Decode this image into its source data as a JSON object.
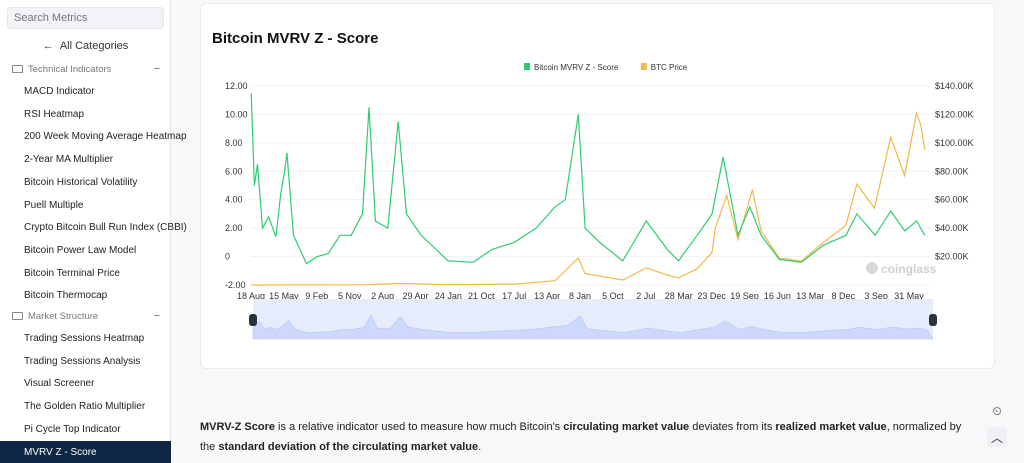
{
  "sidebar": {
    "search_placeholder": "Search Metrics",
    "all_categories": "All Categories",
    "groups": [
      {
        "label": "Technical Indicators",
        "items": [
          "MACD Indicator",
          "RSI Heatmap",
          "200 Week Moving Average Heatmap",
          "2-Year MA Multiplier",
          "Bitcoin Historical Volatility",
          "Puell Multiple",
          "Crypto Bitcoin Bull Run Index (CBBI)",
          "Bitcoin Power Law Model",
          "Bitcoin Terminal Price",
          "Bitcoin Thermocap"
        ]
      },
      {
        "label": "Market Structure",
        "items": [
          "Trading Sessions Heatmap",
          "Trading Sessions Analysis",
          "Visual Screener",
          "The Golden Ratio Multiplier",
          "Pi Cycle Top Indicator",
          "MVRV Z - Score"
        ]
      }
    ],
    "active_item": "MVRV Z - Score"
  },
  "card": {
    "title": "Bitcoin MVRV Z - Score",
    "watermark": "coinglass"
  },
  "chart_data": {
    "type": "line",
    "title": "Bitcoin MVRV Z - Score",
    "legend_position": "top",
    "x_ticks": [
      "18 Aug",
      "15 May",
      "9 Feb",
      "5 Nov",
      "2 Aug",
      "29 Apr",
      "24 Jan",
      "21 Oct",
      "17 Jul",
      "13 Apr",
      "8 Jan",
      "5 Oct",
      "2 Jul",
      "28 Mar",
      "23 Dec",
      "19 Sep",
      "16 Jun",
      "13 Mar",
      "8 Dec",
      "3 Sep",
      "31 May"
    ],
    "x_range": [
      "2010-08-18",
      "2025-11-10"
    ],
    "y_left": {
      "ticks": [
        "12.00",
        "10.00",
        "8.00",
        "6.00",
        "4.00",
        "2.00",
        "0",
        "-2.00"
      ],
      "range": [
        -2,
        12
      ]
    },
    "y_right": {
      "ticks": [
        "$140.00K",
        "$120.00K",
        "$100.00K",
        "$80.00K",
        "$60.00K",
        "$40.00K",
        "$20.00K"
      ],
      "range": [
        0,
        140000
      ]
    },
    "series": [
      {
        "name": "Bitcoin MVRV Z - Score",
        "color": "#2ecc71",
        "axis": "left",
        "points": [
          [
            "2010-08-20",
            11.5
          ],
          [
            "2010-09-15",
            5
          ],
          [
            "2010-10-10",
            6.5
          ],
          [
            "2010-11-20",
            2
          ],
          [
            "2011-01-10",
            2.8
          ],
          [
            "2011-03-10",
            1.4
          ],
          [
            "2011-04-20",
            4.5
          ],
          [
            "2011-05-20",
            6
          ],
          [
            "2011-06-08",
            7.3
          ],
          [
            "2011-08-01",
            1.5
          ],
          [
            "2011-11-15",
            -0.5
          ],
          [
            "2012-02-10",
            0
          ],
          [
            "2012-05-10",
            0.2
          ],
          [
            "2012-08-15",
            1.5
          ],
          [
            "2012-11-15",
            1.5
          ],
          [
            "2013-02-15",
            3
          ],
          [
            "2013-04-09",
            10.5
          ],
          [
            "2013-06-01",
            2.5
          ],
          [
            "2013-09-10",
            2
          ],
          [
            "2013-12-04",
            9.5
          ],
          [
            "2014-02-10",
            3
          ],
          [
            "2014-06-10",
            1.5
          ],
          [
            "2014-10-10",
            0.5
          ],
          [
            "2015-01-15",
            -0.3
          ],
          [
            "2015-08-10",
            -0.4
          ],
          [
            "2016-01-10",
            0.5
          ],
          [
            "2016-07-10",
            1
          ],
          [
            "2017-01-05",
            2
          ],
          [
            "2017-06-10",
            3.5
          ],
          [
            "2017-09-01",
            4
          ],
          [
            "2017-12-17",
            10
          ],
          [
            "2018-02-10",
            2
          ],
          [
            "2018-06-10",
            1
          ],
          [
            "2018-12-15",
            -0.3
          ],
          [
            "2019-06-26",
            2.5
          ],
          [
            "2019-12-15",
            0.5
          ],
          [
            "2020-03-15",
            -0.3
          ],
          [
            "2020-08-15",
            1.5
          ],
          [
            "2020-12-15",
            3
          ],
          [
            "2021-03-15",
            7
          ],
          [
            "2021-07-15",
            1.5
          ],
          [
            "2021-10-20",
            3.5
          ],
          [
            "2022-01-20",
            1.5
          ],
          [
            "2022-06-18",
            -0.2
          ],
          [
            "2022-12-15",
            -0.4
          ],
          [
            "2023-06-15",
            0.8
          ],
          [
            "2023-12-15",
            1.5
          ],
          [
            "2024-03-14",
            3
          ],
          [
            "2024-08-10",
            1.5
          ],
          [
            "2024-12-15",
            3.2
          ],
          [
            "2025-04-10",
            1.8
          ],
          [
            "2025-07-15",
            2.5
          ],
          [
            "2025-09-20",
            1.5
          ]
        ]
      },
      {
        "name": "BTC Price",
        "color": "#f0b94a",
        "axis": "right",
        "points": [
          [
            "2010-08-20",
            0
          ],
          [
            "2013-04-09",
            200
          ],
          [
            "2013-12-04",
            1100
          ],
          [
            "2015-01-15",
            200
          ],
          [
            "2016-07-10",
            650
          ],
          [
            "2017-06-10",
            3000
          ],
          [
            "2017-12-17",
            19000
          ],
          [
            "2018-02-10",
            8000
          ],
          [
            "2018-12-15",
            3500
          ],
          [
            "2019-06-26",
            12000
          ],
          [
            "2019-12-15",
            7000
          ],
          [
            "2020-03-15",
            5000
          ],
          [
            "2020-08-15",
            11500
          ],
          [
            "2020-12-15",
            23000
          ],
          [
            "2021-01-10",
            40000
          ],
          [
            "2021-04-14",
            63000
          ],
          [
            "2021-07-15",
            32000
          ],
          [
            "2021-11-10",
            67000
          ],
          [
            "2022-01-20",
            38000
          ],
          [
            "2022-06-18",
            19000
          ],
          [
            "2022-12-15",
            16800
          ],
          [
            "2023-06-15",
            30000
          ],
          [
            "2023-12-15",
            42000
          ],
          [
            "2024-03-14",
            71000
          ],
          [
            "2024-08-05",
            54000
          ],
          [
            "2024-12-15",
            104000
          ],
          [
            "2025-04-08",
            77000
          ],
          [
            "2025-07-14",
            121000
          ],
          [
            "2025-08-20",
            112000
          ],
          [
            "2025-09-20",
            95000
          ]
        ]
      }
    ]
  },
  "description": {
    "p1": "MVRV-Z Score",
    "p2": " is a relative indicator used to measure how much Bitcoin's ",
    "p3": "circulating market value",
    "p4": " deviates from its ",
    "p5": "realized market value",
    "p6": ", normalized by the ",
    "p7": "standard deviation of the circulating market value",
    "p8": "."
  }
}
